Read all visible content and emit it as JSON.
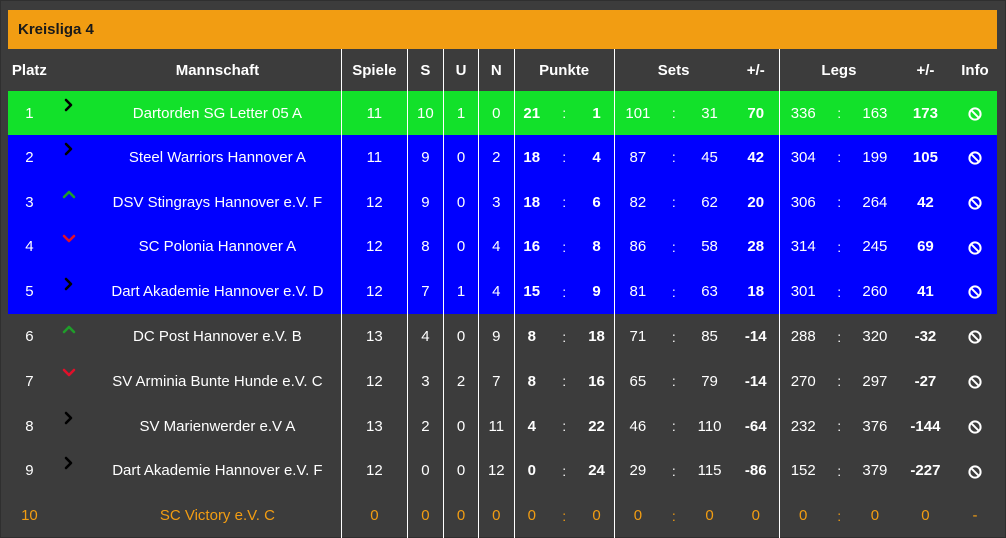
{
  "league_title": "Kreisliga 4",
  "headers": {
    "platz": "Platz",
    "mannschaft": "Mannschaft",
    "spiele": "Spiele",
    "s": "S",
    "u": "U",
    "n": "N",
    "punkte": "Punkte",
    "sets": "Sets",
    "sets_diff": "+/-",
    "legs": "Legs",
    "legs_diff": "+/-",
    "info": "Info"
  },
  "colon": ":",
  "colors": {
    "title_bar": "#f29d12",
    "promotion_green": "#12e12a",
    "qualification_blue": "#0000ff",
    "background_grey": "#3c3c3c",
    "inactive_orange": "#f29d12",
    "trend_up_green": "#1f9d2a",
    "trend_down_red": "#e0102a",
    "trend_same_black": "#000000"
  },
  "rows": [
    {
      "platz": "1",
      "trend": "same",
      "mannschaft": "Dartorden SG Letter 05 A",
      "spiele": "11",
      "s": "10",
      "u": "1",
      "n": "0",
      "punkte_plus": "21",
      "punkte_minus": "1",
      "sets_plus": "101",
      "sets_minus": "31",
      "sets_diff": "70",
      "legs_plus": "336",
      "legs_minus": "163",
      "legs_diff": "173",
      "info": "info-icon",
      "style": "green"
    },
    {
      "platz": "2",
      "trend": "same",
      "mannschaft": "Steel Warriors Hannover A",
      "spiele": "11",
      "s": "9",
      "u": "0",
      "n": "2",
      "punkte_plus": "18",
      "punkte_minus": "4",
      "sets_plus": "87",
      "sets_minus": "45",
      "sets_diff": "42",
      "legs_plus": "304",
      "legs_minus": "199",
      "legs_diff": "105",
      "info": "info-icon",
      "style": "blue"
    },
    {
      "platz": "3",
      "trend": "up",
      "mannschaft": "DSV Stingrays Hannover e.V. F",
      "spiele": "12",
      "s": "9",
      "u": "0",
      "n": "3",
      "punkte_plus": "18",
      "punkte_minus": "6",
      "sets_plus": "82",
      "sets_minus": "62",
      "sets_diff": "20",
      "legs_plus": "306",
      "legs_minus": "264",
      "legs_diff": "42",
      "info": "info-icon",
      "style": "blue"
    },
    {
      "platz": "4",
      "trend": "down",
      "mannschaft": "SC Polonia Hannover A",
      "spiele": "12",
      "s": "8",
      "u": "0",
      "n": "4",
      "punkte_plus": "16",
      "punkte_minus": "8",
      "sets_plus": "86",
      "sets_minus": "58",
      "sets_diff": "28",
      "legs_plus": "314",
      "legs_minus": "245",
      "legs_diff": "69",
      "info": "info-icon",
      "style": "blue"
    },
    {
      "platz": "5",
      "trend": "same",
      "mannschaft": "Dart Akademie Hannover e.V. D",
      "spiele": "12",
      "s": "7",
      "u": "1",
      "n": "4",
      "punkte_plus": "15",
      "punkte_minus": "9",
      "sets_plus": "81",
      "sets_minus": "63",
      "sets_diff": "18",
      "legs_plus": "301",
      "legs_minus": "260",
      "legs_diff": "41",
      "info": "info-icon",
      "style": "blue"
    },
    {
      "platz": "6",
      "trend": "up",
      "mannschaft": "DC Post Hannover e.V. B",
      "spiele": "13",
      "s": "4",
      "u": "0",
      "n": "9",
      "punkte_plus": "8",
      "punkte_minus": "18",
      "sets_plus": "71",
      "sets_minus": "85",
      "sets_diff": "-14",
      "legs_plus": "288",
      "legs_minus": "320",
      "legs_diff": "-32",
      "info": "info-icon",
      "style": "grey"
    },
    {
      "platz": "7",
      "trend": "down",
      "mannschaft": "SV Arminia Bunte Hunde e.V. C",
      "spiele": "12",
      "s": "3",
      "u": "2",
      "n": "7",
      "punkte_plus": "8",
      "punkte_minus": "16",
      "sets_plus": "65",
      "sets_minus": "79",
      "sets_diff": "-14",
      "legs_plus": "270",
      "legs_minus": "297",
      "legs_diff": "-27",
      "info": "info-icon",
      "style": "grey"
    },
    {
      "platz": "8",
      "trend": "same",
      "mannschaft": "SV Marienwerder e.V A",
      "spiele": "13",
      "s": "2",
      "u": "0",
      "n": "11",
      "punkte_plus": "4",
      "punkte_minus": "22",
      "sets_plus": "46",
      "sets_minus": "110",
      "sets_diff": "-64",
      "legs_plus": "232",
      "legs_minus": "376",
      "legs_diff": "-144",
      "info": "info-icon",
      "style": "grey"
    },
    {
      "platz": "9",
      "trend": "same",
      "mannschaft": "Dart Akademie Hannover e.V. F",
      "spiele": "12",
      "s": "0",
      "u": "0",
      "n": "12",
      "punkte_plus": "0",
      "punkte_minus": "24",
      "sets_plus": "29",
      "sets_minus": "115",
      "sets_diff": "-86",
      "legs_plus": "152",
      "legs_minus": "379",
      "legs_diff": "-227",
      "info": "info-icon",
      "style": "grey"
    },
    {
      "platz": "10",
      "trend": "none",
      "mannschaft": "SC Victory e.V. C",
      "spiele": "0",
      "s": "0",
      "u": "0",
      "n": "0",
      "punkte_plus": "0",
      "punkte_minus": "0",
      "sets_plus": "0",
      "sets_minus": "0",
      "sets_diff": "0",
      "legs_plus": "0",
      "legs_minus": "0",
      "legs_diff": "0",
      "info": "-",
      "style": "orange"
    }
  ]
}
